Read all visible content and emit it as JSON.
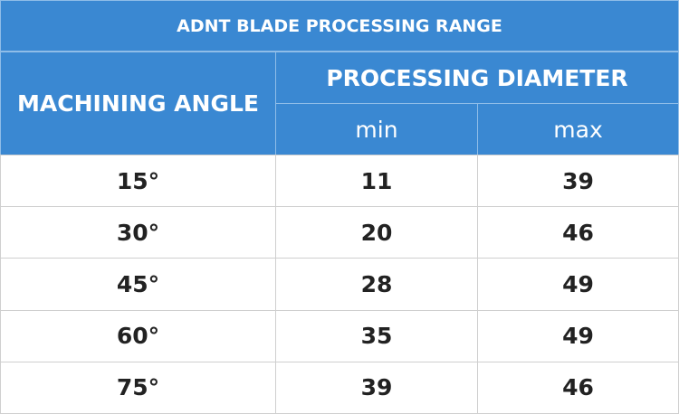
{
  "table": {
    "title": "ADNT BLADE PROCESSING RANGE",
    "header": {
      "angle": "MACHINING ANGLE",
      "diameter": "PROCESSING DIAMETER",
      "min": "min",
      "max": "max"
    },
    "rows": [
      [
        "15°",
        "11",
        "39"
      ],
      [
        "30°",
        "20",
        "46"
      ],
      [
        "45°",
        "28",
        "49"
      ],
      [
        "60°",
        "35",
        "49"
      ],
      [
        "75°",
        "39",
        "46"
      ]
    ]
  }
}
